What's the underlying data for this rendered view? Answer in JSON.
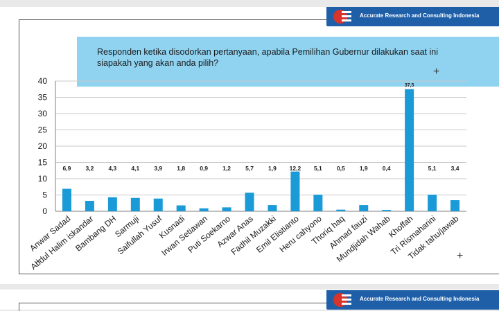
{
  "brand": {
    "name": "Accurate Research and Consulting Indonesia"
  },
  "question": "Responden ketika disodorkan pertanyaan, apabila Pemilihan Gubernur dilakukan saat ini siapakah yang akan anda pilih?",
  "colors": {
    "bar": "#1a9bd7",
    "brand_bg": "#1f5fa8",
    "prompt_bg": "#8fd3f1"
  },
  "icons": {
    "plus": "+",
    "cross": "×"
  },
  "chart_data": {
    "type": "bar",
    "categories": [
      "Anwar Sadad",
      "Abdul Halim iskandar",
      "Bambang DH",
      "Sarmuji",
      "Saifullah Yusuf",
      "Kusnadi",
      "Irwan Setiawan",
      "Puti Soekarno",
      "Azwar Anas",
      "Fadhil Muzakki",
      "Emil Elistianto",
      "Heru cahyono",
      "Thoriq haq",
      "Ahmad fauzi",
      "Mundjidah Wahab",
      "Khoffah",
      "Tri Rismaharini",
      "Tidak tahu/jawab"
    ],
    "values": [
      6.9,
      3.2,
      4.3,
      4.1,
      3.9,
      1.8,
      0.9,
      1.2,
      5.7,
      1.9,
      12.2,
      5.1,
      0.5,
      1.9,
      0.4,
      37.5,
      5.1,
      3.4
    ],
    "labels": [
      "6,9",
      "3,2",
      "4,3",
      "4,1",
      "3,9",
      "1,8",
      "0,9",
      "1,2",
      "5,7",
      "1,9",
      "12,2",
      "5,1",
      "0,5",
      "1,9",
      "0,4",
      "37,5",
      "5,1",
      "3,4"
    ],
    "yticks": [
      0,
      5,
      10,
      15,
      20,
      25,
      30,
      35,
      40
    ],
    "ylim": [
      0,
      40
    ],
    "grid": true
  }
}
